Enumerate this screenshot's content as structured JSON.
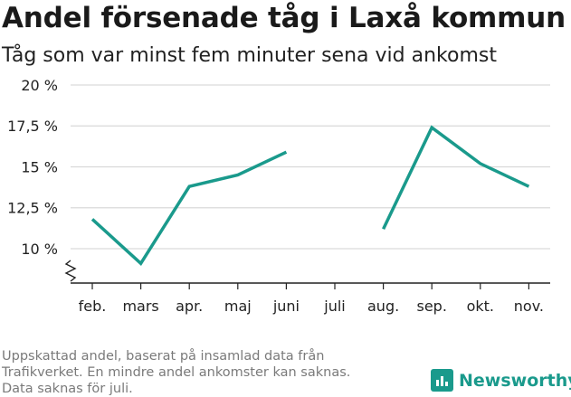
{
  "title": "Andel försenade tåg i Laxå kommun",
  "subtitle": "Tåg som var minst fem minuter sena vid ankomst",
  "footnote": [
    "Uppskattad andel, baserat på insamlad data från",
    "Trafikverket. En mindre andel ankomster kan saknas.",
    "Data saknas för juli."
  ],
  "brand": {
    "name": "Newsworthy",
    "color": "#1a9a8c",
    "icon": "bar-chart-logo-icon"
  },
  "chart_data": {
    "type": "line",
    "categories": [
      "feb.",
      "mars",
      "apr.",
      "maj",
      "juni",
      "juli",
      "aug.",
      "sep.",
      "okt.",
      "nov."
    ],
    "series": [
      {
        "values": [
          11.8,
          9.1,
          13.8,
          14.5,
          15.9,
          null,
          11.2,
          17.4,
          15.2,
          13.8
        ],
        "color": "#1a9a8c"
      }
    ],
    "yticks": [
      10,
      12.5,
      15,
      17.5,
      20
    ],
    "ytick_labels": [
      "10 %",
      "12,5 %",
      "15 %",
      "17,5 %",
      "20 %"
    ],
    "ylim": [
      7.9,
      20
    ],
    "axis_break": true,
    "grid": true,
    "xlabel": "",
    "ylabel": ""
  }
}
